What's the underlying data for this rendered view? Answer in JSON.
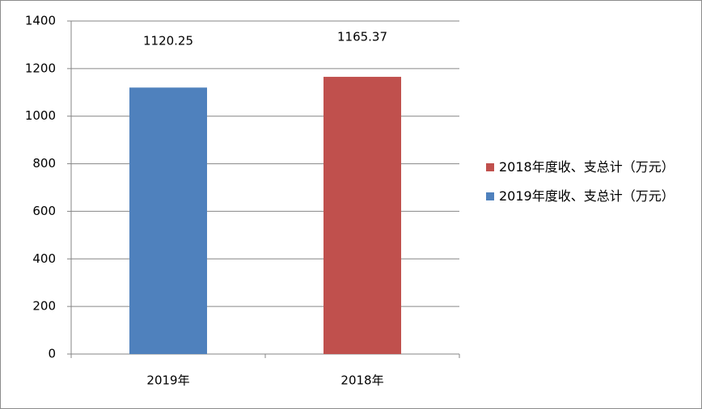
{
  "chart_data": {
    "type": "bar",
    "categories": [
      "2019年",
      "2018年"
    ],
    "series": [
      {
        "name": "2018年度收、支总计（万元）",
        "color": "#c0504d",
        "values": [
          null,
          1165.37
        ]
      },
      {
        "name": "2019年度收、支总计（万元）",
        "color": "#4f81bd",
        "values": [
          1120.25,
          null
        ]
      }
    ],
    "ylim": [
      0,
      1400
    ],
    "yticks": [
      0,
      200,
      400,
      600,
      800,
      1000,
      1200,
      1400
    ],
    "grid": true,
    "legend": "right"
  }
}
